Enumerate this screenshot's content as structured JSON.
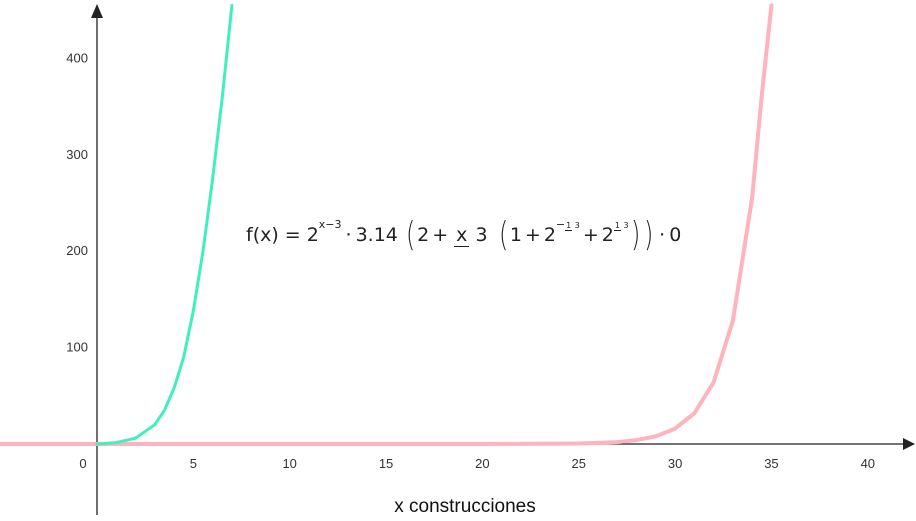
{
  "chart_data": {
    "type": "line",
    "xlabel": "x construcciones",
    "ylabel": "",
    "xlim": [
      -4.5,
      42.5
    ],
    "ylim": [
      -22,
      455
    ],
    "x_ticks": [
      0,
      5,
      10,
      15,
      20,
      25,
      30,
      35,
      40
    ],
    "y_ticks": [
      100,
      200,
      300,
      400
    ],
    "grid": false,
    "annotation": {
      "lhs": "f(x)",
      "eq": "=",
      "base": "2",
      "exponent": "x−3",
      "dot1": "·",
      "coef": "3.14",
      "lparen_big": "(",
      "two": "2",
      "plus1": "+",
      "frac_num": "x",
      "frac_den": "3",
      "lparen2": "(",
      "one": "1",
      "plus2": "+",
      "b2": "2",
      "e2_sign": "−",
      "e2_num": "1",
      "e2_den": "3",
      "plus3": "+",
      "b3": "2",
      "e3_num": "1",
      "e3_den": "3",
      "rparen2": ")",
      "rparen_big": ")",
      "dot2": "·",
      "zero": "0"
    },
    "series": [
      {
        "color": "#3ff0be",
        "x": [
          0,
          1,
          2,
          3,
          3.5,
          4,
          4.5,
          5,
          5.5,
          6,
          6.5,
          7
        ],
        "y": [
          0,
          1.5,
          6,
          20,
          35,
          58,
          90,
          138,
          200,
          275,
          360,
          455
        ]
      },
      {
        "color": "#ffb3bd",
        "x": [
          -5,
          0,
          10,
          20,
          25,
          27,
          28,
          29,
          30,
          31,
          32,
          33,
          34,
          34.5,
          35
        ],
        "y": [
          0,
          0,
          0,
          0,
          0.5,
          2,
          4,
          8,
          16,
          32,
          64,
          128,
          256,
          362,
          455
        ]
      }
    ]
  }
}
